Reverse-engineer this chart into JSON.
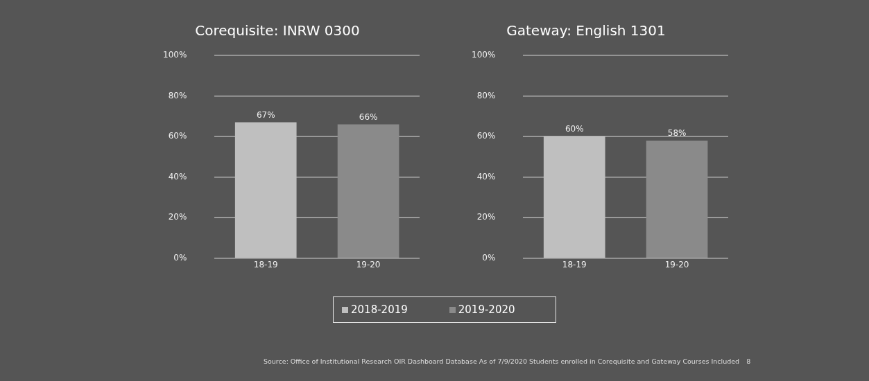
{
  "chart_data": [
    {
      "type": "bar",
      "title": "Corequisite: INRW 0300",
      "categories": [
        "18-19",
        "19-20"
      ],
      "series": [
        {
          "name": "2018-2019",
          "color": "#bfbfbf",
          "values": [
            67,
            null
          ],
          "value_labels": [
            "67%",
            null
          ]
        },
        {
          "name": "2019-2020",
          "color": "#8a8a8a",
          "values": [
            null,
            66
          ],
          "value_labels": [
            null,
            "66%"
          ]
        }
      ],
      "ylim": [
        0,
        100
      ],
      "yticks": [
        {
          "value": 0,
          "label": "0%"
        },
        {
          "value": 20,
          "label": "20%"
        },
        {
          "value": 40,
          "label": "40%"
        },
        {
          "value": 60,
          "label": "60%"
        },
        {
          "value": 80,
          "label": "80%"
        },
        {
          "value": 100,
          "label": "100%"
        }
      ],
      "grid": "y",
      "legend": "bottom"
    },
    {
      "type": "bar",
      "title": "Gateway: English 1301",
      "categories": [
        "18-19",
        "19-20"
      ],
      "series": [
        {
          "color": "#bfbfbf",
          "values": [
            60,
            null
          ],
          "value_labels": [
            "60%",
            null
          ]
        },
        {
          "color": "#8a8a8a",
          "values": [
            null,
            58
          ],
          "value_labels": [
            null,
            "58%"
          ]
        }
      ],
      "ylim": [
        0,
        100
      ],
      "yticks": [
        {
          "value": 0,
          "label": "0%"
        },
        {
          "value": 20,
          "label": "20%"
        },
        {
          "value": 40,
          "label": "40%"
        },
        {
          "value": 60,
          "label": "60%"
        },
        {
          "value": 80,
          "label": "80%"
        },
        {
          "value": 100,
          "label": "100%"
        }
      ],
      "grid": "y",
      "annotations": [
        "Source:  Office of Institutional Research OIR Dashboard  Database As of 7/9/2020 Students enrolled in Corequisite and Gateway Courses Included",
        "8"
      ]
    }
  ]
}
